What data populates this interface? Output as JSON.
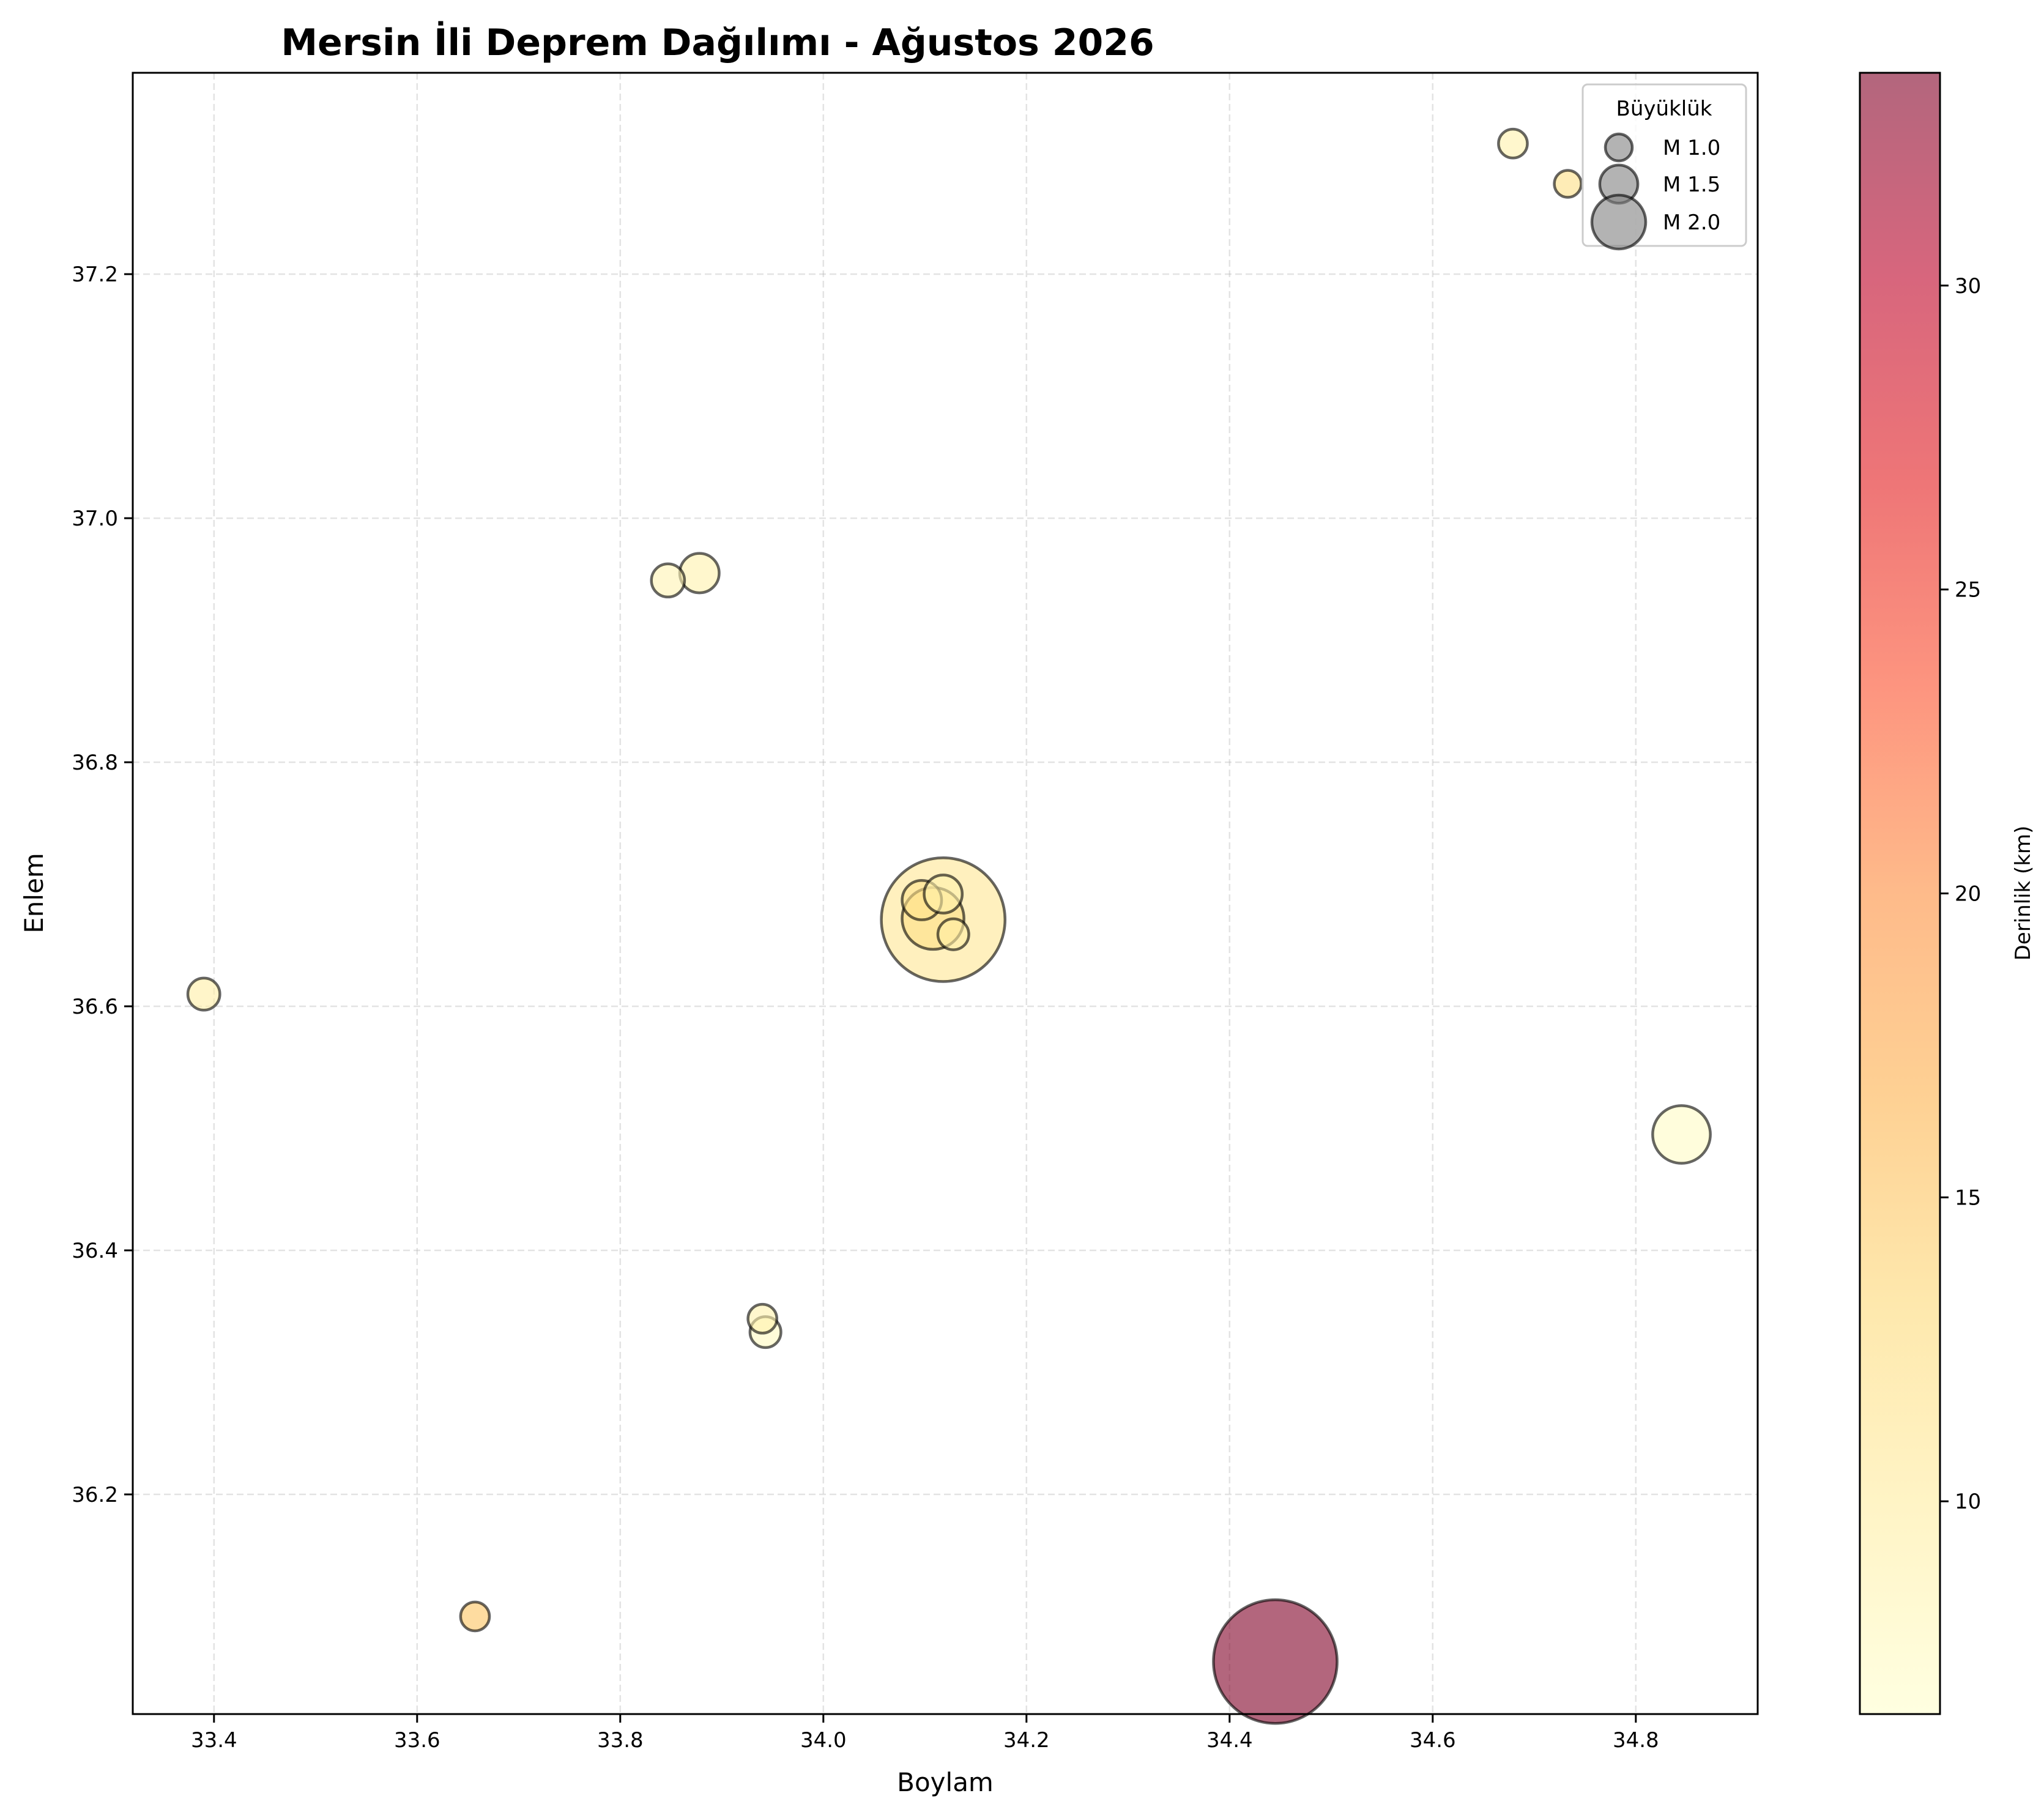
{
  "chart_data": {
    "type": "scatter",
    "title": "Mersin İli Deprem Dağılımı - Ağustos 2026",
    "xlabel": "Boylam",
    "ylabel": "Enlem",
    "xlim": [
      33.32,
      34.92
    ],
    "ylim": [
      36.02,
      37.365
    ],
    "xticks": [
      33.4,
      33.6,
      33.8,
      34.0,
      34.2,
      34.4,
      34.6,
      34.8
    ],
    "yticks": [
      36.2,
      36.4,
      36.6,
      36.8,
      37.0,
      37.2
    ],
    "xtick_labels": [
      "33.4",
      "33.6",
      "33.8",
      "34.0",
      "34.2",
      "34.4",
      "34.6",
      "34.8"
    ],
    "ytick_labels": [
      "36.2",
      "36.4",
      "36.6",
      "36.8",
      "37.0",
      "37.2"
    ],
    "grid": true,
    "legend": {
      "title": "Büyüklük",
      "placement": "top-right",
      "entries": [
        {
          "label": "M 1.0",
          "magnitude": 1.0
        },
        {
          "label": "M 1.5",
          "magnitude": 1.5
        },
        {
          "label": "M 2.0",
          "magnitude": 2.0
        }
      ]
    },
    "colorbar": {
      "label": "Derinlik (km)",
      "range": [
        6.5,
        33.5
      ],
      "ticks": [
        10,
        15,
        20,
        25,
        30
      ],
      "tick_labels": [
        "10",
        "15",
        "20",
        "25",
        "30"
      ],
      "colormap": [
        "#ffffcc",
        "#ffeda0",
        "#fed976",
        "#feb24c",
        "#fd8d3c",
        "#fc4e2a",
        "#e31a1c",
        "#bd0026",
        "#800026"
      ],
      "alpha": 0.6
    },
    "points": [
      {
        "lon": 34.445,
        "lat": 36.063,
        "mag": 3.2,
        "depth": 33.5
      },
      {
        "lon": 34.118,
        "lat": 36.671,
        "mag": 3.2,
        "depth": 11.0
      },
      {
        "lon": 34.108,
        "lat": 36.672,
        "mag": 2.2,
        "depth": 12.0
      },
      {
        "lon": 34.845,
        "lat": 36.495,
        "mag": 2.1,
        "depth": 7.0
      },
      {
        "lon": 34.118,
        "lat": 36.692,
        "mag": 1.5,
        "depth": 9.0
      },
      {
        "lon": 34.097,
        "lat": 36.687,
        "mag": 1.55,
        "depth": 11.5
      },
      {
        "lon": 33.878,
        "lat": 36.955,
        "mag": 1.55,
        "depth": 9.0
      },
      {
        "lon": 33.847,
        "lat": 36.949,
        "mag": 1.3,
        "depth": 8.5
      },
      {
        "lon": 34.128,
        "lat": 36.659,
        "mag": 1.2,
        "depth": 9.5
      },
      {
        "lon": 33.39,
        "lat": 36.61,
        "mag": 1.25,
        "depth": 9.5
      },
      {
        "lon": 33.943,
        "lat": 36.333,
        "mag": 1.2,
        "depth": 7.5
      },
      {
        "lon": 33.94,
        "lat": 36.344,
        "mag": 1.1,
        "depth": 9.0
      },
      {
        "lon": 33.657,
        "lat": 36.1,
        "mag": 1.1,
        "depth": 15.0
      },
      {
        "lon": 34.679,
        "lat": 37.307,
        "mag": 1.1,
        "depth": 9.0
      },
      {
        "lon": 34.733,
        "lat": 37.274,
        "mag": 1.0,
        "depth": 12.0
      }
    ]
  }
}
